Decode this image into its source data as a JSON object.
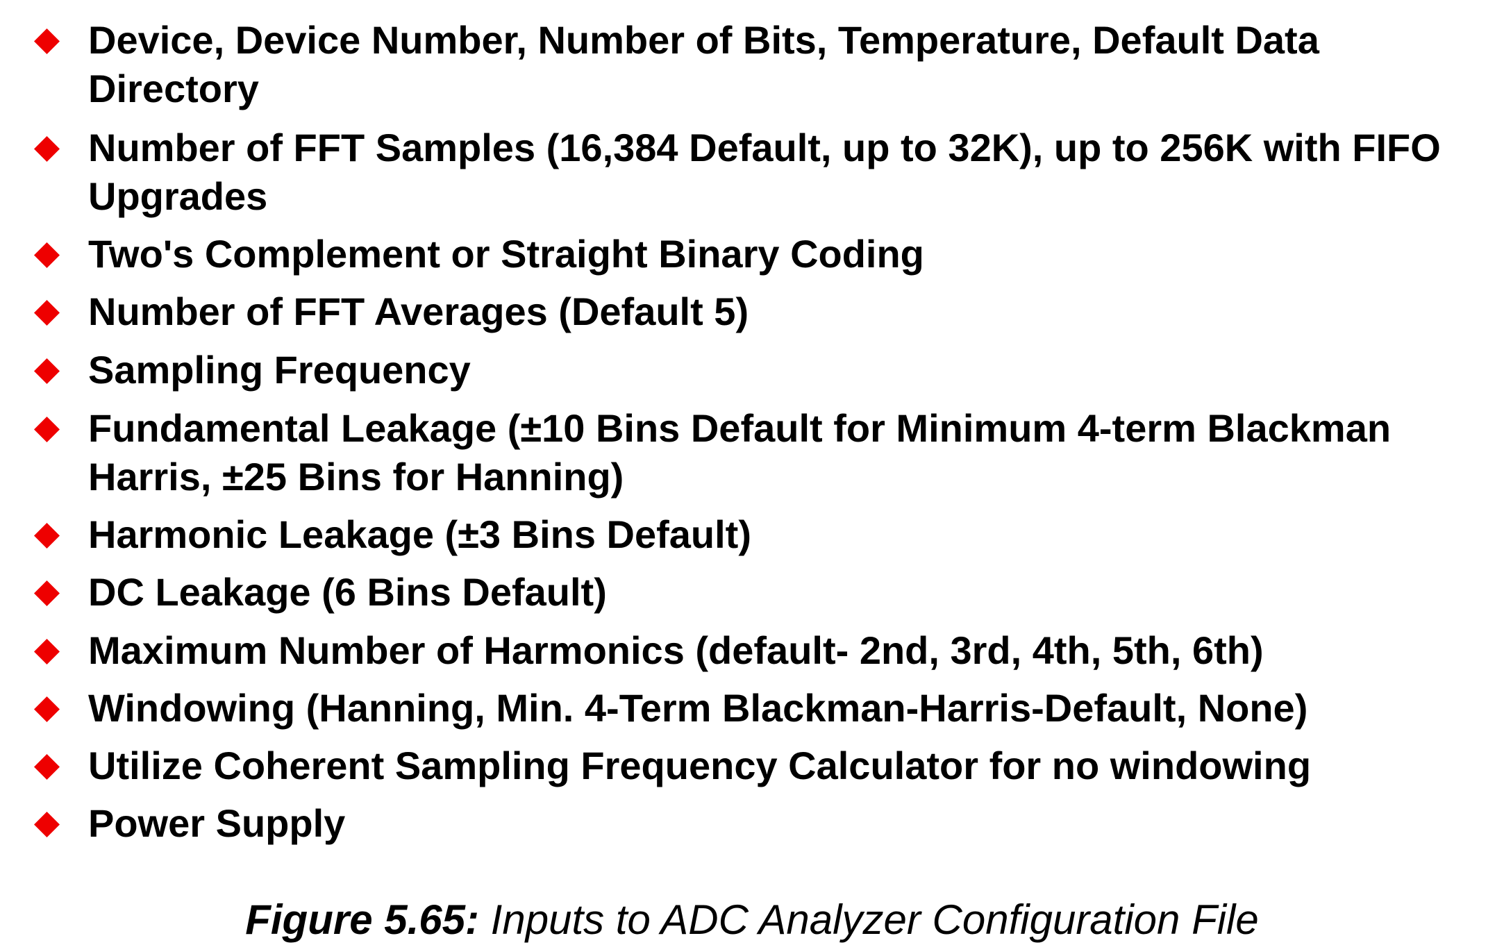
{
  "bullet_icon": "red-diamond",
  "bullet_color": "#ee0000",
  "items": [
    {
      "text": "Device, Device Number, Number of Bits, Temperature, Default Data Directory"
    },
    {
      "text": "Number of FFT Samples (16,384 Default, up to 32K), up to 256K with FIFO Upgrades"
    },
    {
      "text": "Two's Complement or Straight Binary Coding"
    },
    {
      "text": "Number of FFT Averages (Default 5)"
    },
    {
      "text": "Sampling Frequency"
    },
    {
      "text": "Fundamental Leakage (±10 Bins Default for Minimum 4-term Blackman Harris, ±25 Bins for Hanning)"
    },
    {
      "text": "Harmonic Leakage (±3 Bins Default)"
    },
    {
      "text": "DC Leakage (6 Bins Default)"
    },
    {
      "text": "Maximum Number of Harmonics (default- 2nd, 3rd, 4th, 5th, 6th)"
    },
    {
      "text": "Windowing (Hanning, Min. 4-Term Blackman-Harris-Default, None)"
    },
    {
      "text": "Utilize Coherent Sampling Frequency Calculator for no windowing"
    },
    {
      "text": "Power Supply"
    }
  ],
  "caption": {
    "label": "Figure 5.65:",
    "text": " Inputs to ADC Analyzer Configuration File"
  }
}
